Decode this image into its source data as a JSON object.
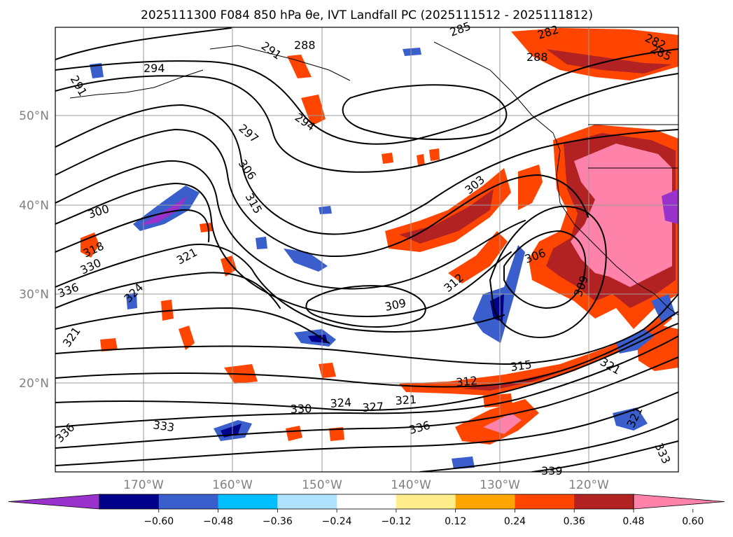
{
  "title": "2025111300 F084 850 hPa θe, IVT Landfall PC (2025111512 - 2025111812)",
  "lat_ticks": [
    "50°N",
    "40°N",
    "30°N",
    "20°N"
  ],
  "lon_ticks": [
    "170°W",
    "160°W",
    "150°W",
    "140°W",
    "130°W",
    "120°W"
  ],
  "colorbar": {
    "levels": [
      "−0.60",
      "−0.48",
      "−0.36",
      "−0.24",
      "−0.12",
      "0.12",
      "0.24",
      "0.36",
      "0.48",
      "0.60"
    ],
    "colors": [
      "#9932CC",
      "#00008B",
      "#3A5FCD",
      "#00BFFF",
      "#B0E2FF",
      "#FFFFFF",
      "#FFEC8B",
      "#FFA500",
      "#FF4500",
      "#B22222",
      "#FF82AB"
    ]
  },
  "map": {
    "lon_range": [
      -180,
      -110
    ],
    "lat_range": [
      10,
      60
    ],
    "theta_e_contour_labels": [
      "282",
      "285",
      "288",
      "291",
      "294",
      "297",
      "300",
      "303",
      "306",
      "309",
      "312",
      "315",
      "318",
      "321",
      "324",
      "327",
      "330",
      "333",
      "336",
      "339"
    ]
  }
}
